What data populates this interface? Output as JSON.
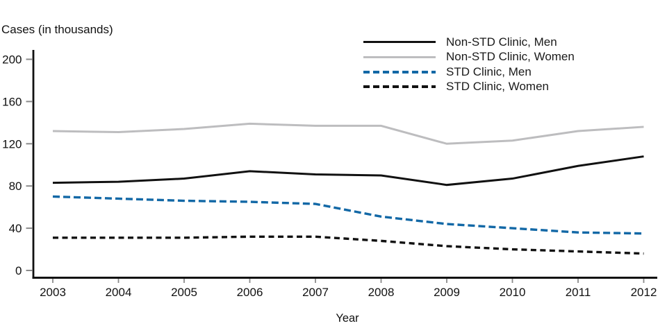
{
  "figure": {
    "kind": "line-chart",
    "background": "#ffffff",
    "text_color": "#111111"
  },
  "chart_data": {
    "type": "line",
    "title": "",
    "xlabel": "Year",
    "ylabel": "Cases (in thousands)",
    "x": [
      2003,
      2004,
      2005,
      2006,
      2007,
      2008,
      2009,
      2010,
      2011,
      2012
    ],
    "xlim": [
      2003,
      2012
    ],
    "ylim": [
      0,
      200
    ],
    "yticks": [
      0,
      40,
      80,
      120,
      160,
      200
    ],
    "grid": false,
    "legend_position": "top-right-inside",
    "series": [
      {
        "name": "Non-STD Clinic, Men",
        "color": "#111111",
        "line_style": "solid",
        "values": [
          83,
          84,
          87,
          94,
          91,
          90,
          81,
          87,
          99,
          108
        ]
      },
      {
        "name": "Non-STD Clinic, Women",
        "color": "#bdbdbf",
        "line_style": "solid",
        "values": [
          132,
          131,
          134,
          139,
          137,
          137,
          120,
          123,
          132,
          136
        ]
      },
      {
        "name": "STD Clinic, Men",
        "color": "#1268a6",
        "line_style": "dashed",
        "values": [
          70,
          68,
          66,
          65,
          63,
          51,
          44,
          40,
          36,
          35
        ]
      },
      {
        "name": "STD Clinic, Women",
        "color": "#111111",
        "line_style": "dashed",
        "values": [
          31,
          31,
          31,
          32,
          32,
          28,
          23,
          20,
          18,
          16
        ]
      }
    ]
  }
}
